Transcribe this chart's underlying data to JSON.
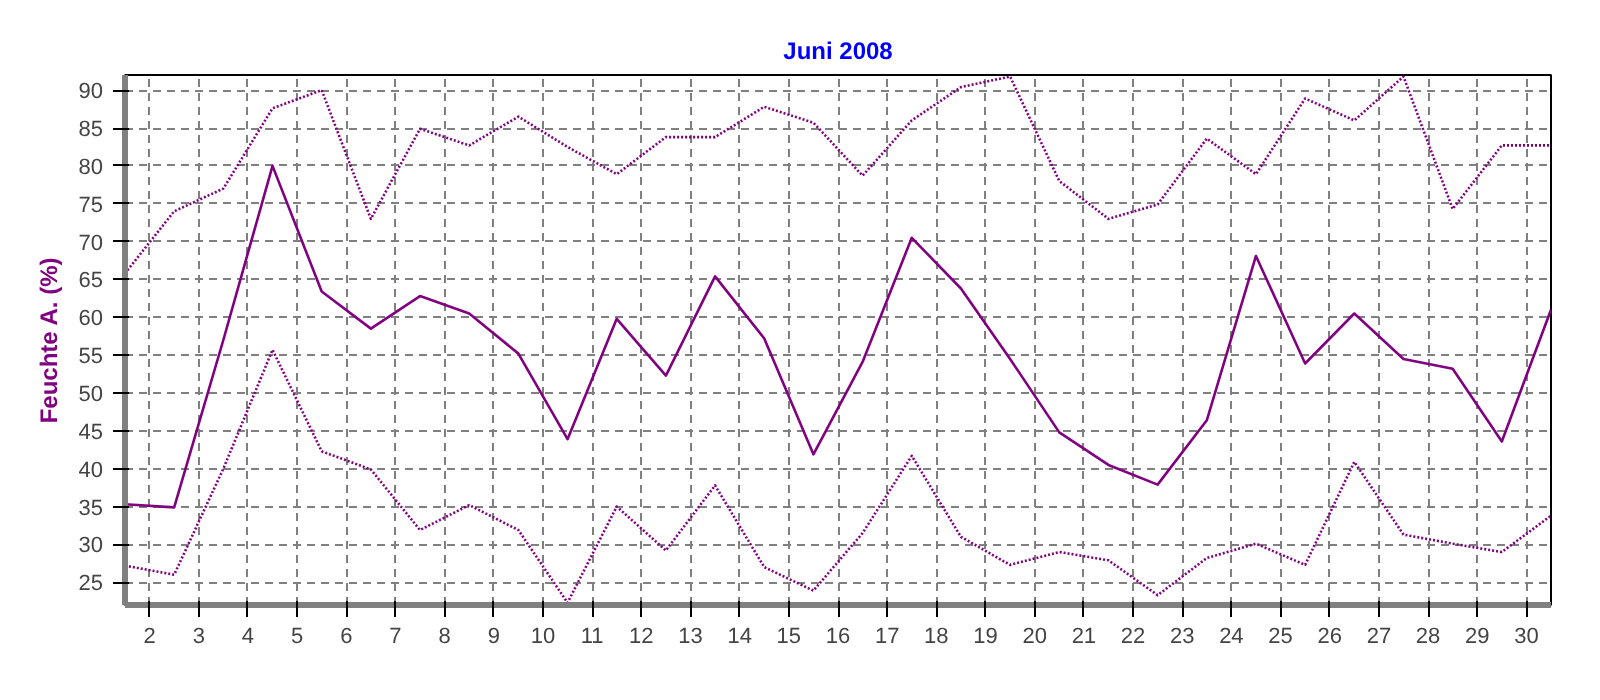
{
  "chart_data": {
    "type": "line",
    "title": "Juni 2008",
    "ylabel": "Feuchte A. (%)",
    "x": [
      1.5,
      2.5,
      3.5,
      4.5,
      5.5,
      6.5,
      7.5,
      8.5,
      9.5,
      10.5,
      11.5,
      12.5,
      13.5,
      14.5,
      15.5,
      16.5,
      17.5,
      18.5,
      19.5,
      20.5,
      21.5,
      22.5,
      23.5,
      24.5,
      25.5,
      26.5,
      27.5,
      28.5,
      29.5,
      30.5
    ],
    "series": [
      {
        "color": "#800080",
        "line_style": "dotted",
        "values": [
          65.8,
          74,
          77,
          87.6,
          90,
          73,
          84.9,
          82.7,
          86.5,
          82.5,
          78.9,
          83.8,
          83.8,
          87.8,
          85.7,
          78.7,
          86,
          90.4,
          91.8,
          78,
          73,
          74.9,
          83.6,
          78.9,
          88.9,
          86,
          91.8,
          74.3,
          82.7,
          82.7
        ]
      },
      {
        "color": "#800080",
        "line_style": "solid",
        "values": [
          35.3,
          34.9,
          57,
          80,
          63.4,
          58.5,
          62.8,
          60.5,
          55.2,
          43.9,
          59.8,
          52.3,
          65.4,
          57.2,
          41.9,
          54.1,
          70.5,
          63.8,
          54.5,
          44.8,
          40.5,
          37.9,
          46.4,
          68.1,
          53.9,
          60.5,
          54.5,
          53.2,
          43.6,
          61
        ]
      },
      {
        "color": "#800080",
        "line_style": "dotted",
        "values": [
          27.2,
          26,
          40,
          55.7,
          42.3,
          39.9,
          31.9,
          35.2,
          31.9,
          22.3,
          35,
          29.2,
          37.8,
          27,
          23.9,
          31.5,
          41.7,
          31,
          27.3,
          29,
          27.9,
          23.3,
          28.2,
          30.1,
          27.3,
          40.9,
          31.3,
          30.1,
          29,
          33.8
        ]
      }
    ],
    "xlim": [
      1.5,
      30.5
    ],
    "xticks": [
      2,
      3,
      4,
      5,
      6,
      7,
      8,
      9,
      10,
      11,
      12,
      13,
      14,
      15,
      16,
      17,
      18,
      19,
      20,
      21,
      22,
      23,
      24,
      25,
      26,
      27,
      28,
      29,
      30
    ],
    "ylim": [
      22,
      92
    ],
    "yticks": [
      25,
      30,
      35,
      40,
      45,
      50,
      55,
      60,
      65,
      70,
      75,
      80,
      85,
      90
    ],
    "grid": true,
    "marker": "none"
  }
}
